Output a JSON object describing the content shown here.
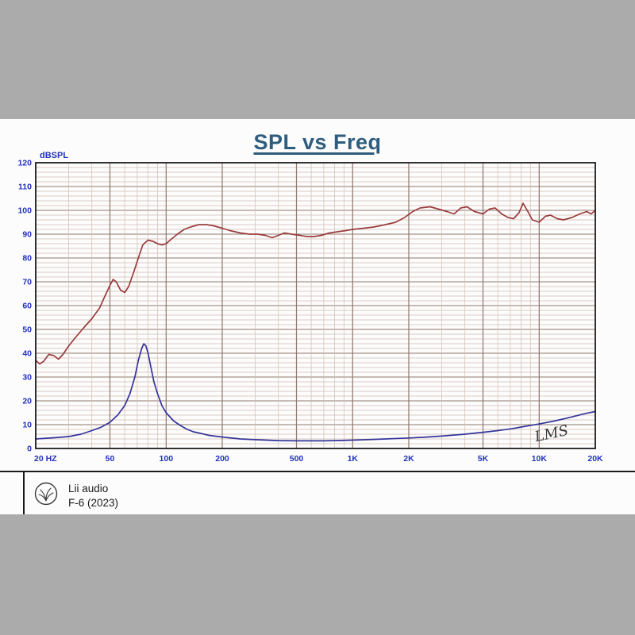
{
  "page": {
    "surround_color": "#ababab",
    "panel_color": "#fcfcfc"
  },
  "chart_data": {
    "type": "line",
    "title": "SPL vs Freq",
    "ylabel": "dBSPL",
    "x_scale": "log",
    "x_range_hz": [
      20,
      20000
    ],
    "ylim": [
      0,
      120
    ],
    "y_major_step": 10,
    "y_minor_step": 2,
    "y_tick_labels": [
      "0",
      "10",
      "20",
      "30",
      "40",
      "50",
      "60",
      "70",
      "80",
      "90",
      "100",
      "110",
      "120"
    ],
    "x_ticks": [
      {
        "value": 20,
        "label": "20 HZ"
      },
      {
        "value": 50,
        "label": "50"
      },
      {
        "value": 100,
        "label": "100"
      },
      {
        "value": 200,
        "label": "200"
      },
      {
        "value": 500,
        "label": "500"
      },
      {
        "value": 1000,
        "label": "1K"
      },
      {
        "value": 2000,
        "label": "2K"
      },
      {
        "value": 5000,
        "label": "5K"
      },
      {
        "value": 10000,
        "label": "10K"
      },
      {
        "value": 20000,
        "label": "20K"
      }
    ],
    "grid": {
      "minor_color": "#d3bdb0",
      "major_color": "#8f776b",
      "frame_color": "#1c1c1c"
    },
    "label_color": "#2233bb",
    "title_color": "#2e5d7d",
    "annotation": "LMS",
    "annotation_color": "#3a3a3a",
    "series": [
      {
        "name": "SPL",
        "color": "#9a3b3b",
        "points": [
          [
            20,
            37
          ],
          [
            21,
            35.5
          ],
          [
            22,
            36.5
          ],
          [
            23.5,
            39.5
          ],
          [
            25,
            39
          ],
          [
            26.5,
            37.5
          ],
          [
            28,
            39.5
          ],
          [
            30,
            43
          ],
          [
            33,
            47
          ],
          [
            36,
            50.5
          ],
          [
            40,
            54.5
          ],
          [
            44,
            59
          ],
          [
            47,
            64
          ],
          [
            50,
            68.5
          ],
          [
            52,
            71
          ],
          [
            54,
            70
          ],
          [
            57,
            66.5
          ],
          [
            60,
            65.5
          ],
          [
            63,
            68
          ],
          [
            67,
            74
          ],
          [
            71,
            80
          ],
          [
            75,
            85.5
          ],
          [
            80,
            87.5
          ],
          [
            85,
            87
          ],
          [
            90,
            86
          ],
          [
            95,
            85.5
          ],
          [
            100,
            86
          ],
          [
            107,
            88
          ],
          [
            115,
            90
          ],
          [
            125,
            92
          ],
          [
            135,
            93
          ],
          [
            150,
            94
          ],
          [
            165,
            94
          ],
          [
            180,
            93.5
          ],
          [
            200,
            92.5
          ],
          [
            220,
            91.5
          ],
          [
            250,
            90.5
          ],
          [
            280,
            90
          ],
          [
            310,
            90
          ],
          [
            340,
            89.5
          ],
          [
            370,
            88.5
          ],
          [
            400,
            89.5
          ],
          [
            430,
            90.5
          ],
          [
            470,
            90
          ],
          [
            520,
            89.5
          ],
          [
            570,
            89
          ],
          [
            620,
            89
          ],
          [
            680,
            89.5
          ],
          [
            750,
            90.5
          ],
          [
            830,
            91
          ],
          [
            920,
            91.5
          ],
          [
            1000,
            92
          ],
          [
            1150,
            92.5
          ],
          [
            1300,
            93
          ],
          [
            1500,
            94
          ],
          [
            1700,
            95
          ],
          [
            1900,
            97
          ],
          [
            2100,
            99.5
          ],
          [
            2300,
            101
          ],
          [
            2600,
            101.5
          ],
          [
            2900,
            100.5
          ],
          [
            3200,
            99.5
          ],
          [
            3500,
            98.5
          ],
          [
            3800,
            101
          ],
          [
            4100,
            101.5
          ],
          [
            4500,
            99.5
          ],
          [
            5000,
            98.5
          ],
          [
            5400,
            100.5
          ],
          [
            5800,
            101
          ],
          [
            6300,
            98.5
          ],
          [
            6800,
            97
          ],
          [
            7300,
            96.5
          ],
          [
            7800,
            99
          ],
          [
            8200,
            103
          ],
          [
            8700,
            99.5
          ],
          [
            9200,
            96
          ],
          [
            10000,
            95
          ],
          [
            10800,
            97.5
          ],
          [
            11500,
            98
          ],
          [
            12500,
            96.5
          ],
          [
            13500,
            96
          ],
          [
            15000,
            97
          ],
          [
            16500,
            98.5
          ],
          [
            18000,
            99.5
          ],
          [
            19000,
            98.5
          ],
          [
            20000,
            100
          ]
        ]
      },
      {
        "name": "Impedance",
        "color": "#34349b",
        "points": [
          [
            20,
            4
          ],
          [
            25,
            4.5
          ],
          [
            30,
            5
          ],
          [
            35,
            6
          ],
          [
            40,
            7.5
          ],
          [
            45,
            9
          ],
          [
            50,
            11
          ],
          [
            55,
            14
          ],
          [
            60,
            18
          ],
          [
            64,
            23
          ],
          [
            68,
            30
          ],
          [
            71,
            37
          ],
          [
            74,
            42
          ],
          [
            76,
            44
          ],
          [
            78,
            43
          ],
          [
            80,
            40
          ],
          [
            83,
            34
          ],
          [
            86,
            28
          ],
          [
            90,
            23
          ],
          [
            95,
            18
          ],
          [
            100,
            15
          ],
          [
            110,
            11.5
          ],
          [
            120,
            9.5
          ],
          [
            130,
            8
          ],
          [
            140,
            7
          ],
          [
            150,
            6.5
          ],
          [
            170,
            5.5
          ],
          [
            200,
            4.8
          ],
          [
            250,
            4
          ],
          [
            300,
            3.7
          ],
          [
            400,
            3.3
          ],
          [
            500,
            3.2
          ],
          [
            600,
            3.2
          ],
          [
            700,
            3.2
          ],
          [
            800,
            3.3
          ],
          [
            1000,
            3.5
          ],
          [
            1200,
            3.7
          ],
          [
            1500,
            4
          ],
          [
            2000,
            4.4
          ],
          [
            2500,
            4.8
          ],
          [
            3000,
            5.2
          ],
          [
            4000,
            6
          ],
          [
            5000,
            6.8
          ],
          [
            6000,
            7.5
          ],
          [
            7000,
            8.2
          ],
          [
            8000,
            9
          ],
          [
            9000,
            9.7
          ],
          [
            10000,
            10.3
          ],
          [
            12000,
            11.5
          ],
          [
            14000,
            12.7
          ],
          [
            16000,
            13.8
          ],
          [
            18000,
            14.8
          ],
          [
            20000,
            15.5
          ]
        ]
      }
    ]
  },
  "footer": {
    "brand": "Lii audio",
    "model": "F-6 (2023)"
  }
}
